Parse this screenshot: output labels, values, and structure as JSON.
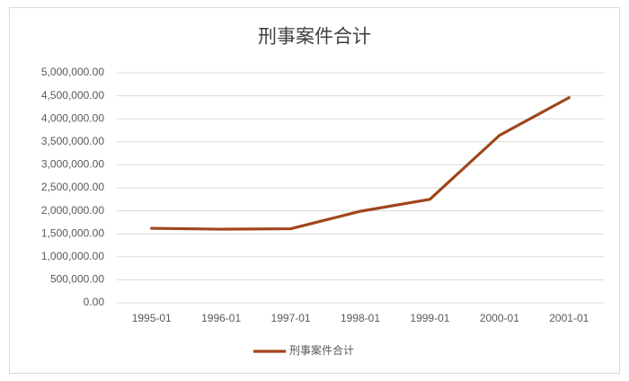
{
  "chart_data": {
    "type": "line",
    "title": "刑事案件合计",
    "categories": [
      "1995-01",
      "1996-01",
      "1997-01",
      "1998-01",
      "1999-01",
      "2000-01",
      "2001-01"
    ],
    "series": [
      {
        "name": "刑事案件合计",
        "color": "#a0461c",
        "values": [
          1620000,
          1600000,
          1610000,
          1990000,
          2250000,
          3640000,
          4460000
        ]
      }
    ],
    "ylim": [
      0,
      5000000
    ],
    "yticks": [
      {
        "value": 0,
        "label": "0.00"
      },
      {
        "value": 500000,
        "label": "500,000.00"
      },
      {
        "value": 1000000,
        "label": "1,000,000.00"
      },
      {
        "value": 1500000,
        "label": "1,500,000.00"
      },
      {
        "value": 2000000,
        "label": "2,000,000.00"
      },
      {
        "value": 2500000,
        "label": "2,500,000.00"
      },
      {
        "value": 3000000,
        "label": "3,000,000.00"
      },
      {
        "value": 3500000,
        "label": "3,500,000.00"
      },
      {
        "value": 4000000,
        "label": "4,000,000.00"
      },
      {
        "value": 4500000,
        "label": "4,500,000.00"
      },
      {
        "value": 5000000,
        "label": "5,000,000.00"
      }
    ],
    "grid": true,
    "legend": "bottom"
  }
}
